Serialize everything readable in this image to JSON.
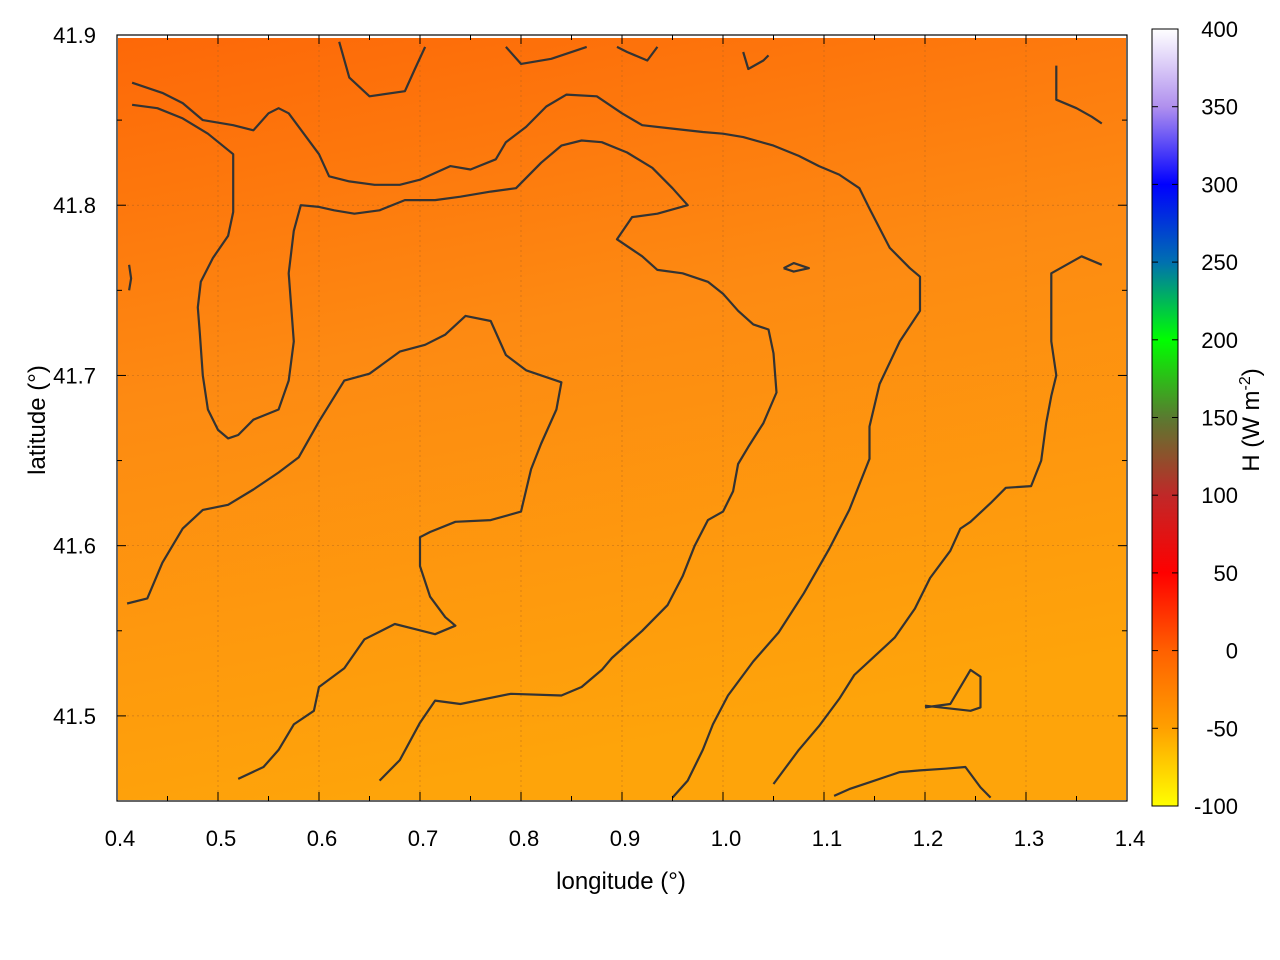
{
  "chart_data": {
    "type": "heatmap",
    "title": "",
    "xlabel": "longitude (°)",
    "ylabel": "latitude (°)",
    "xlim": [
      0.4,
      1.4
    ],
    "ylim": [
      41.45,
      41.9
    ],
    "x_ticks": [
      "0.4",
      "0.5",
      "0.6",
      "0.7",
      "0.8",
      "0.9",
      "1.0",
      "1.1",
      "1.2",
      "1.3",
      "1.4"
    ],
    "y_ticks": [
      "41.5",
      "41.6",
      "41.7",
      "41.8",
      "41.9"
    ],
    "grid": true,
    "colorbar": {
      "label_main": "H (W m",
      "label_sup": "-2",
      "label_end": ")",
      "range": [
        -100,
        400
      ],
      "ticks": [
        "-100",
        "-50",
        "0",
        "50",
        "100",
        "150",
        "200",
        "250",
        "300",
        "350",
        "400"
      ],
      "colors": [
        "#ffff00",
        "#ffa000",
        "#ff6000",
        "#ff0000",
        "#c02828",
        "#5a7a30",
        "#00ff00",
        "#0070b0",
        "#0000ff",
        "#b090ee",
        "#ffffff"
      ]
    },
    "field_value_range_approx": [
      -40,
      5
    ],
    "field_colors": {
      "north": "#fd6808",
      "south": "#fea40a",
      "mid": "#fd8a12",
      "contour": "#333333"
    },
    "contours": [
      {
        "points": [
          [
            0.415,
            41.872
          ],
          [
            0.445,
            41.866
          ],
          [
            0.465,
            41.86
          ],
          [
            0.485,
            41.85
          ],
          [
            0.515,
            41.847
          ],
          [
            0.535,
            41.844
          ],
          [
            0.55,
            41.854
          ],
          [
            0.56,
            41.857
          ],
          [
            0.57,
            41.854
          ],
          [
            0.6,
            41.83
          ],
          [
            0.61,
            41.817
          ],
          [
            0.63,
            41.814
          ],
          [
            0.655,
            41.812
          ],
          [
            0.68,
            41.812
          ],
          [
            0.7,
            41.815
          ],
          [
            0.73,
            41.823
          ],
          [
            0.75,
            41.821
          ],
          [
            0.775,
            41.827
          ],
          [
            0.785,
            41.837
          ],
          [
            0.805,
            41.846
          ],
          [
            0.825,
            41.858
          ],
          [
            0.845,
            41.865
          ],
          [
            0.875,
            41.864
          ],
          [
            0.9,
            41.854
          ],
          [
            0.92,
            41.847
          ],
          [
            0.95,
            41.845
          ],
          [
            0.98,
            41.843
          ],
          [
            1.0,
            41.842
          ],
          [
            1.02,
            41.84
          ],
          [
            1.05,
            41.835
          ],
          [
            1.075,
            41.829
          ],
          [
            1.095,
            41.823
          ],
          [
            1.115,
            41.818
          ],
          [
            1.135,
            41.81
          ],
          [
            1.145,
            41.798
          ],
          [
            1.165,
            41.775
          ],
          [
            1.185,
            41.763
          ],
          [
            1.195,
            41.758
          ],
          [
            1.195,
            41.738
          ],
          [
            1.175,
            41.72
          ],
          [
            1.155,
            41.695
          ],
          [
            1.145,
            41.67
          ],
          [
            1.145,
            41.651
          ],
          [
            1.125,
            41.621
          ],
          [
            1.105,
            41.598
          ],
          [
            1.08,
            41.572
          ],
          [
            1.055,
            41.549
          ],
          [
            1.03,
            41.532
          ],
          [
            1.005,
            41.512
          ],
          [
            0.99,
            41.495
          ],
          [
            0.98,
            41.48
          ],
          [
            0.965,
            41.462
          ],
          [
            0.95,
            41.452
          ]
        ]
      },
      {
        "points": [
          [
            0.415,
            41.859
          ],
          [
            0.44,
            41.857
          ],
          [
            0.465,
            41.851
          ],
          [
            0.49,
            41.842
          ],
          [
            0.515,
            41.83
          ],
          [
            0.515,
            41.811
          ],
          [
            0.515,
            41.796
          ],
          [
            0.51,
            41.782
          ],
          [
            0.495,
            41.769
          ],
          [
            0.483,
            41.755
          ],
          [
            0.48,
            41.74
          ],
          [
            0.482,
            41.725
          ],
          [
            0.485,
            41.7
          ],
          [
            0.49,
            41.68
          ],
          [
            0.5,
            41.668
          ],
          [
            0.51,
            41.663
          ],
          [
            0.52,
            41.665
          ],
          [
            0.535,
            41.674
          ],
          [
            0.56,
            41.68
          ],
          [
            0.57,
            41.697
          ],
          [
            0.575,
            41.72
          ],
          [
            0.57,
            41.76
          ],
          [
            0.575,
            41.785
          ],
          [
            0.582,
            41.8
          ],
          [
            0.6,
            41.799
          ],
          [
            0.615,
            41.797
          ],
          [
            0.635,
            41.795
          ],
          [
            0.66,
            41.797
          ],
          [
            0.685,
            41.803
          ],
          [
            0.715,
            41.803
          ],
          [
            0.74,
            41.805
          ],
          [
            0.77,
            41.808
          ],
          [
            0.795,
            41.81
          ],
          [
            0.82,
            41.825
          ],
          [
            0.84,
            41.835
          ],
          [
            0.86,
            41.838
          ],
          [
            0.88,
            41.837
          ],
          [
            0.905,
            41.831
          ],
          [
            0.93,
            41.822
          ],
          [
            0.95,
            41.81
          ],
          [
            0.965,
            41.8
          ],
          [
            0.935,
            41.795
          ],
          [
            0.91,
            41.793
          ],
          [
            0.895,
            41.78
          ],
          [
            0.92,
            41.77
          ],
          [
            0.935,
            41.762
          ],
          [
            0.96,
            41.76
          ],
          [
            0.985,
            41.755
          ],
          [
            1.0,
            41.748
          ],
          [
            1.015,
            41.738
          ],
          [
            1.03,
            41.73
          ],
          [
            1.045,
            41.727
          ],
          [
            1.05,
            41.713
          ],
          [
            1.053,
            41.69
          ],
          [
            1.04,
            41.672
          ],
          [
            1.025,
            41.658
          ],
          [
            1.015,
            41.648
          ],
          [
            1.01,
            41.632
          ],
          [
            1.0,
            41.62
          ],
          [
            0.985,
            41.615
          ],
          [
            0.972,
            41.6
          ],
          [
            0.96,
            41.582
          ],
          [
            0.945,
            41.565
          ],
          [
            0.92,
            41.55
          ],
          [
            0.89,
            41.534
          ],
          [
            0.88,
            41.527
          ],
          [
            0.86,
            41.517
          ],
          [
            0.84,
            41.512
          ],
          [
            0.79,
            41.513
          ],
          [
            0.74,
            41.507
          ],
          [
            0.715,
            41.509
          ],
          [
            0.7,
            41.496
          ],
          [
            0.68,
            41.474
          ],
          [
            0.66,
            41.462
          ]
        ]
      },
      {
        "points": [
          [
            0.41,
            41.566
          ],
          [
            0.43,
            41.569
          ],
          [
            0.445,
            41.59
          ],
          [
            0.465,
            41.61
          ],
          [
            0.485,
            41.621
          ],
          [
            0.51,
            41.624
          ],
          [
            0.535,
            41.633
          ],
          [
            0.56,
            41.643
          ],
          [
            0.58,
            41.652
          ],
          [
            0.6,
            41.673
          ],
          [
            0.625,
            41.697
          ],
          [
            0.65,
            41.701
          ],
          [
            0.68,
            41.714
          ],
          [
            0.705,
            41.718
          ],
          [
            0.725,
            41.724
          ],
          [
            0.745,
            41.735
          ],
          [
            0.77,
            41.732
          ],
          [
            0.785,
            41.712
          ],
          [
            0.805,
            41.703
          ],
          [
            0.84,
            41.696
          ],
          [
            0.835,
            41.68
          ],
          [
            0.82,
            41.66
          ],
          [
            0.81,
            41.645
          ],
          [
            0.8,
            41.62
          ],
          [
            0.77,
            41.615
          ],
          [
            0.735,
            41.614
          ],
          [
            0.71,
            41.608
          ],
          [
            0.7,
            41.605
          ],
          [
            0.7,
            41.588
          ],
          [
            0.71,
            41.57
          ],
          [
            0.725,
            41.558
          ],
          [
            0.735,
            41.553
          ],
          [
            0.715,
            41.548
          ],
          [
            0.695,
            41.551
          ],
          [
            0.675,
            41.554
          ],
          [
            0.665,
            41.551
          ],
          [
            0.645,
            41.545
          ],
          [
            0.625,
            41.528
          ],
          [
            0.6,
            41.517
          ],
          [
            0.595,
            41.503
          ],
          [
            0.575,
            41.495
          ],
          [
            0.56,
            41.48
          ],
          [
            0.545,
            41.47
          ],
          [
            0.52,
            41.463
          ]
        ]
      },
      {
        "points": [
          [
            0.62,
            41.896
          ],
          [
            0.63,
            41.875
          ],
          [
            0.65,
            41.864
          ],
          [
            0.685,
            41.867
          ],
          [
            0.695,
            41.88
          ],
          [
            0.705,
            41.893
          ]
        ]
      },
      {
        "points": [
          [
            0.785,
            41.893
          ],
          [
            0.8,
            41.883
          ],
          [
            0.83,
            41.886
          ],
          [
            0.865,
            41.893
          ]
        ]
      },
      {
        "points": [
          [
            0.895,
            41.893
          ],
          [
            0.905,
            41.89
          ],
          [
            0.925,
            41.885
          ],
          [
            0.935,
            41.893
          ]
        ]
      },
      {
        "points": [
          [
            1.02,
            41.89
          ],
          [
            1.025,
            41.88
          ],
          [
            1.04,
            41.885
          ],
          [
            1.045,
            41.888
          ]
        ]
      },
      {
        "points": [
          [
            1.06,
            41.763
          ],
          [
            1.07,
            41.766
          ],
          [
            1.085,
            41.763
          ],
          [
            1.07,
            41.761
          ],
          [
            1.06,
            41.763
          ]
        ]
      },
      {
        "points": [
          [
            1.33,
            41.882
          ],
          [
            1.33,
            41.862
          ],
          [
            1.35,
            41.857
          ],
          [
            1.365,
            41.852
          ],
          [
            1.375,
            41.848
          ]
        ]
      },
      {
        "points": [
          [
            0.412,
            41.765
          ],
          [
            0.414,
            41.757
          ],
          [
            0.412,
            41.75
          ]
        ]
      },
      {
        "points": [
          [
            1.375,
            41.765
          ],
          [
            1.355,
            41.77
          ],
          [
            1.325,
            41.76
          ],
          [
            1.325,
            41.72
          ],
          [
            1.33,
            41.7
          ],
          [
            1.325,
            41.688
          ],
          [
            1.32,
            41.672
          ],
          [
            1.315,
            41.65
          ],
          [
            1.305,
            41.635
          ],
          [
            1.28,
            41.634
          ],
          [
            1.265,
            41.625
          ],
          [
            1.245,
            41.614
          ],
          [
            1.235,
            41.61
          ],
          [
            1.225,
            41.597
          ],
          [
            1.205,
            41.581
          ],
          [
            1.19,
            41.563
          ],
          [
            1.17,
            41.546
          ],
          [
            1.15,
            41.535
          ],
          [
            1.13,
            41.524
          ],
          [
            1.115,
            41.51
          ],
          [
            1.095,
            41.494
          ],
          [
            1.075,
            41.48
          ],
          [
            1.06,
            41.468
          ],
          [
            1.05,
            41.46
          ]
        ]
      },
      {
        "points": [
          [
            1.2,
            41.505
          ],
          [
            1.225,
            41.507
          ],
          [
            1.245,
            41.527
          ],
          [
            1.255,
            41.523
          ],
          [
            1.255,
            41.505
          ],
          [
            1.245,
            41.503
          ],
          [
            1.2,
            41.506
          ]
        ]
      },
      {
        "points": [
          [
            1.11,
            41.453
          ],
          [
            1.125,
            41.457
          ],
          [
            1.145,
            41.461
          ],
          [
            1.175,
            41.467
          ],
          [
            1.195,
            41.468
          ],
          [
            1.22,
            41.469
          ],
          [
            1.24,
            41.47
          ],
          [
            1.255,
            41.458
          ],
          [
            1.265,
            41.452
          ]
        ]
      }
    ]
  }
}
